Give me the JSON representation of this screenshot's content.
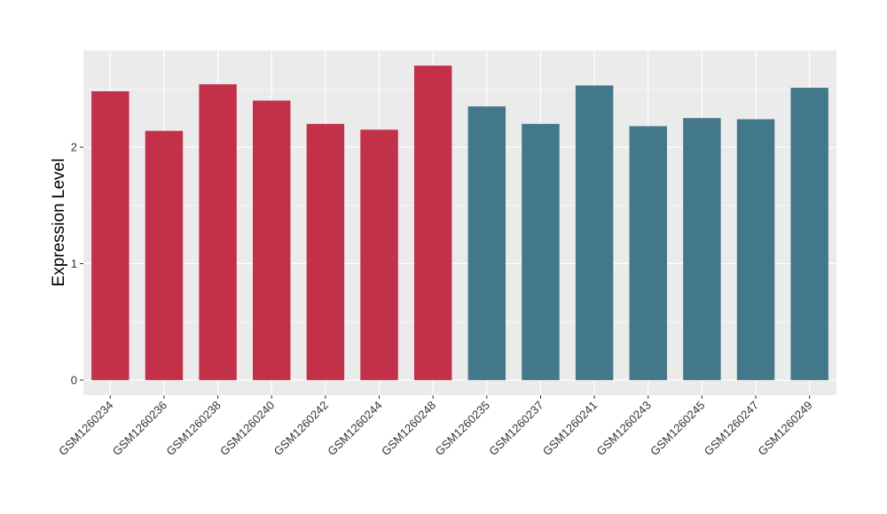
{
  "chart_data": {
    "type": "bar",
    "categories": [
      "GSM1260234",
      "GSM1260236",
      "GSM1260238",
      "GSM1260240",
      "GSM1260242",
      "GSM1260244",
      "GSM1260248",
      "GSM1260235",
      "GSM1260237",
      "GSM1260241",
      "GSM1260243",
      "GSM1260245",
      "GSM1260247",
      "GSM1260249"
    ],
    "values": [
      2.48,
      2.14,
      2.54,
      2.4,
      2.2,
      2.15,
      2.7,
      2.35,
      2.2,
      2.53,
      2.18,
      2.25,
      2.24,
      2.51
    ],
    "groups": [
      0,
      0,
      0,
      0,
      0,
      0,
      0,
      1,
      1,
      1,
      1,
      1,
      1,
      1
    ],
    "group_colors": [
      "#C3304A",
      "#42788A"
    ],
    "ylabel": "Expression Level",
    "xlabel": "",
    "yticks": [
      0,
      1,
      2
    ],
    "ylim": [
      -0.13,
      2.83
    ],
    "grid": true,
    "background": "#EBEBEB",
    "gridline_color": "#FFFFFF"
  }
}
